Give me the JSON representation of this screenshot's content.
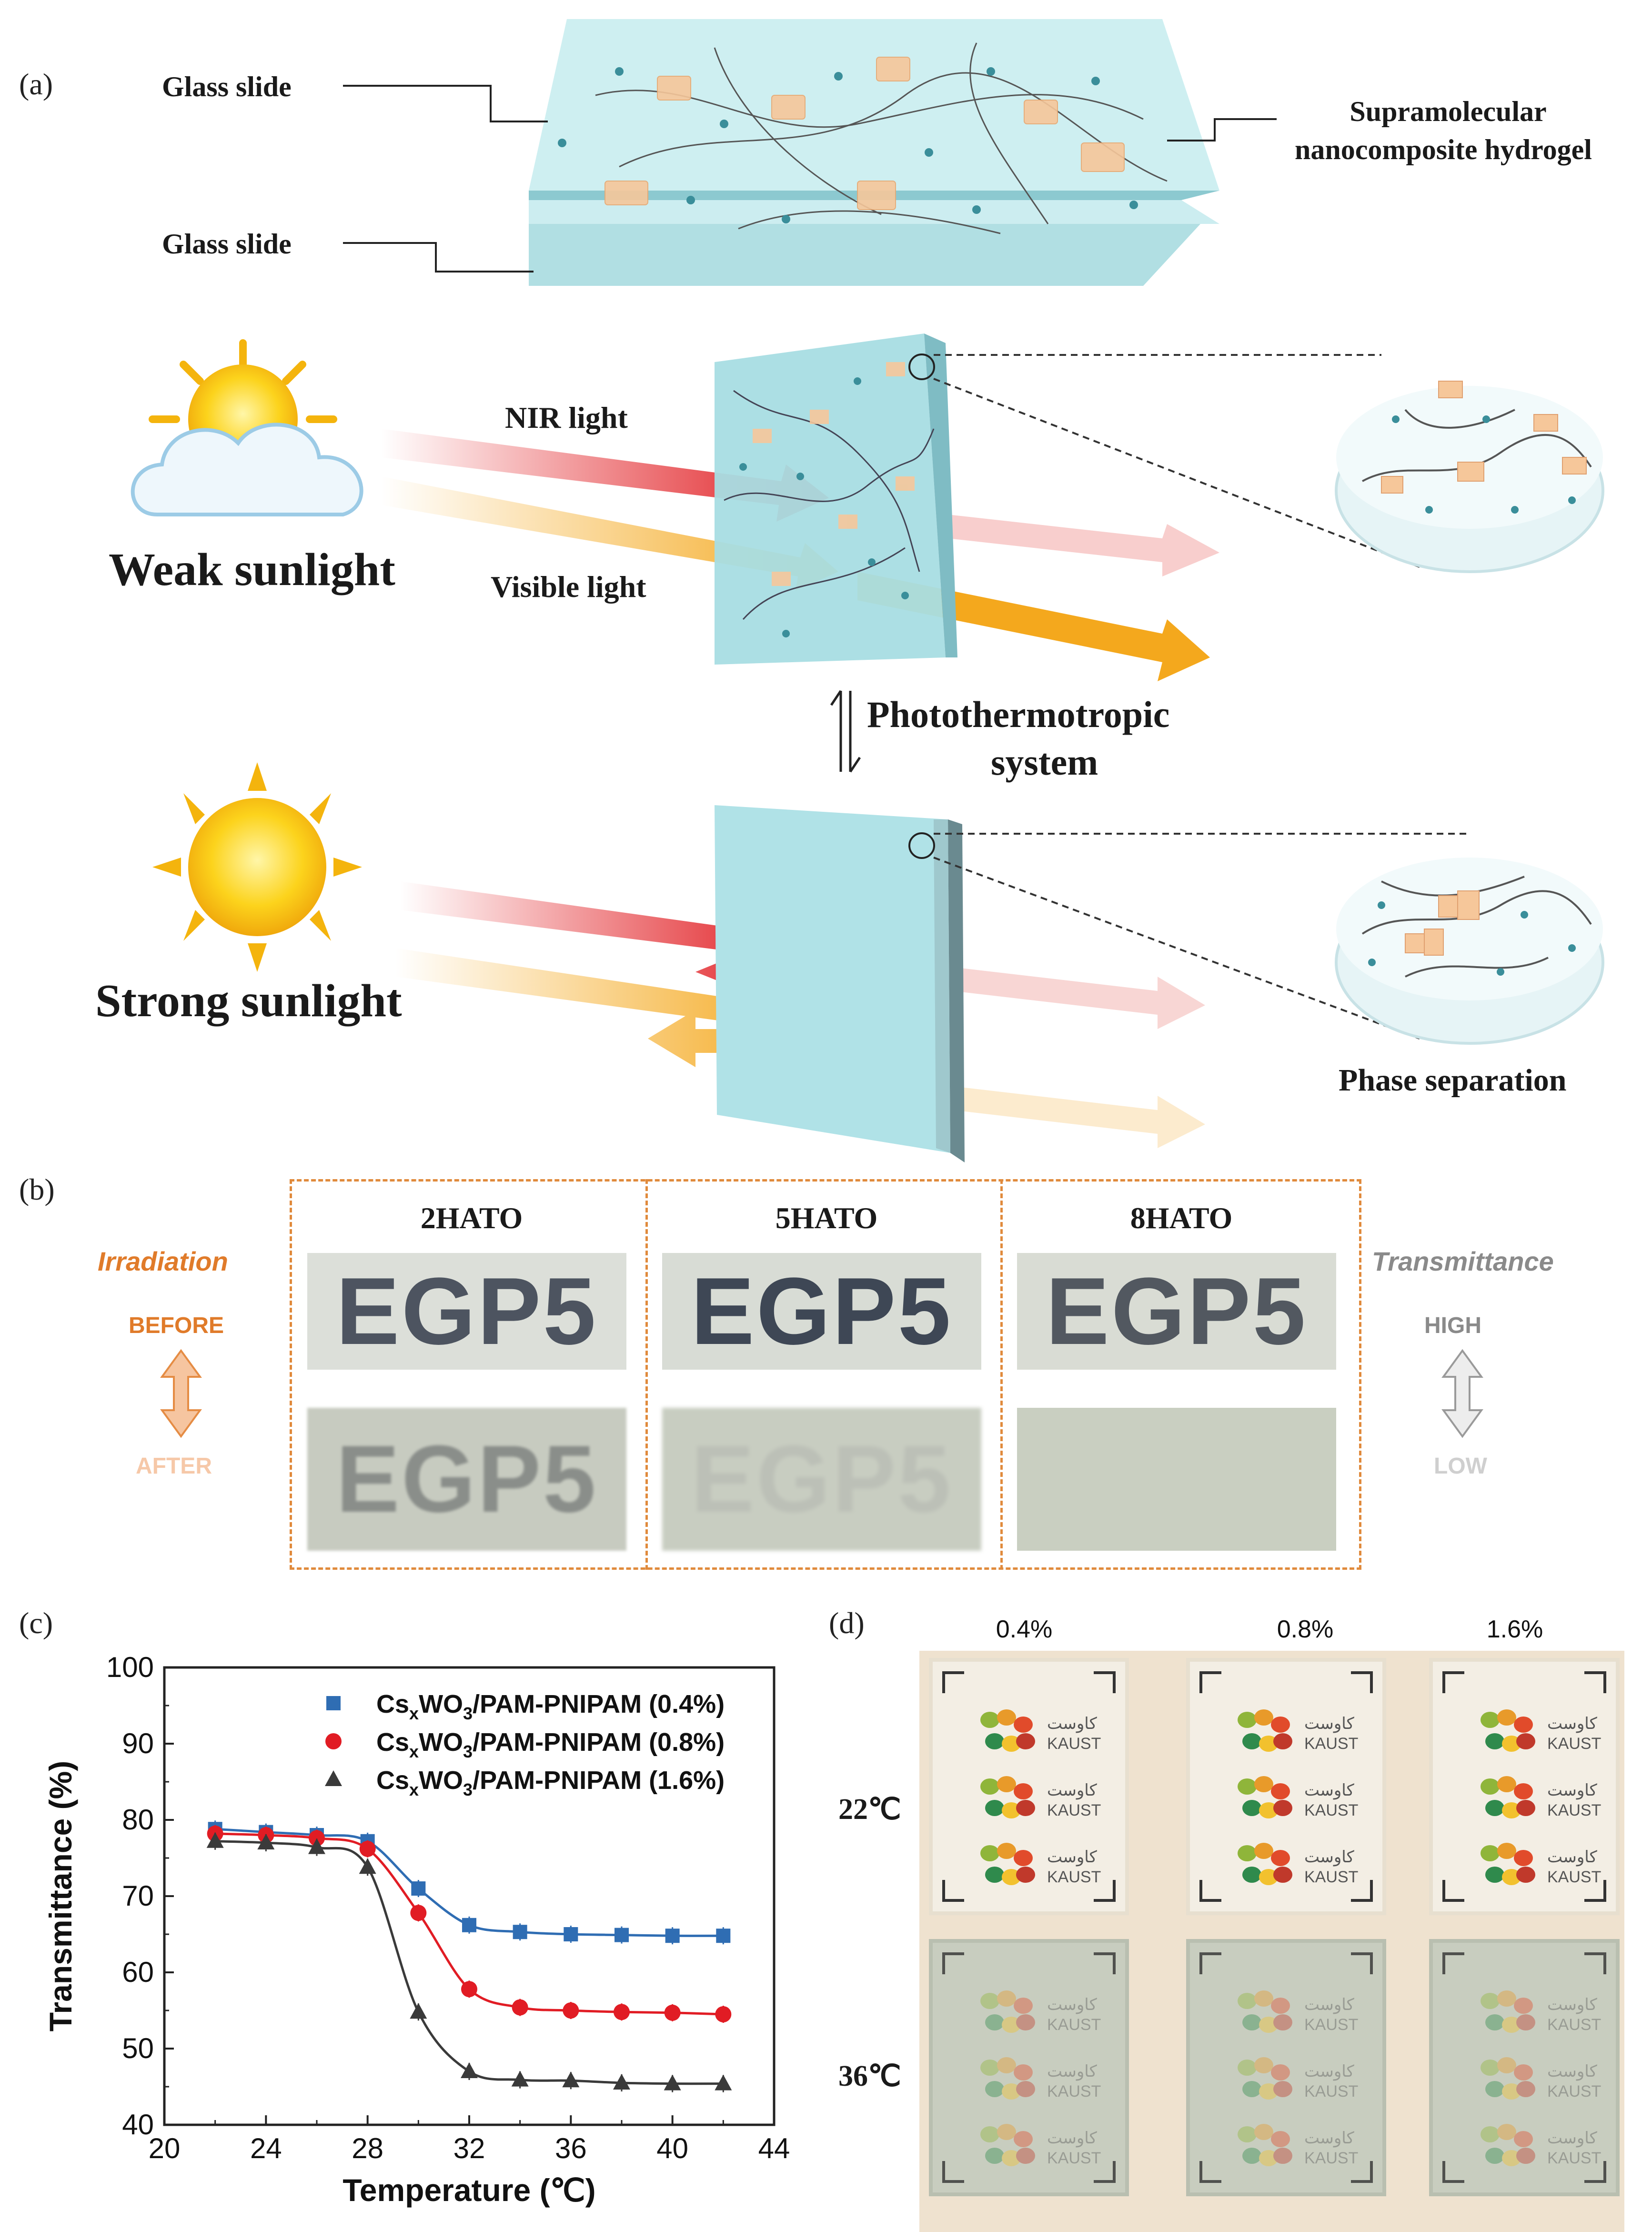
{
  "panel_a": {
    "letter": "(a)",
    "glass_slide_top": "Glass slide",
    "glass_slide_bottom": "Glass slide",
    "hydrogel_label_line1": "Supramolecular",
    "hydrogel_label_line2": "nanocomposite hydrogel",
    "weak_sunlight": "Weak sunlight",
    "nir_light": "NIR light",
    "visible_light": "Visible light",
    "system_line1": "Photothermotropic",
    "system_line2": "system",
    "strong_sunlight": "Strong sunlight",
    "phase_separation": "Phase separation",
    "colors": {
      "glass": "#bfe6ea",
      "nir": "#e0161b",
      "visible": "#f4a81d",
      "particle": "#f6c79a",
      "dot": "#3a8e9a"
    }
  },
  "panel_b": {
    "letter": "(b)",
    "samples": [
      "2HATO",
      "5HATO",
      "8HATO"
    ],
    "sample_text": "EGP5",
    "irradiation": "Irradiation",
    "before": "BEFORE",
    "after": "AFTER",
    "transmittance": "Transmittance",
    "high": "HIGH",
    "low": "LOW",
    "colors": {
      "dash": "#e08a3c",
      "irradiation": "#e07b2a",
      "transmittance": "#8a8a8a"
    }
  },
  "panel_c": {
    "letter": "(c)",
    "chart_data": {
      "type": "scatter",
      "xlabel": "Temperature (℃)",
      "ylabel": "Transmittance (%)",
      "xlim": [
        20,
        44
      ],
      "ylim": [
        40,
        100
      ],
      "xticks": [
        20,
        24,
        28,
        32,
        36,
        40,
        44
      ],
      "yticks": [
        40,
        50,
        60,
        70,
        80,
        90,
        100
      ],
      "legend_position": "top-right",
      "series": [
        {
          "name": "Cs",
          "name_tail": "WO",
          "name_rest": "/PAM-PNIPAM (0.4%)",
          "color": "#2f6db3",
          "marker": "square",
          "x": [
            22,
            24,
            26,
            28,
            30,
            32,
            34,
            36,
            38,
            40,
            42
          ],
          "y": [
            78.8,
            78.4,
            78.0,
            77.2,
            71.0,
            66.2,
            65.3,
            65.0,
            64.9,
            64.8,
            64.8
          ]
        },
        {
          "name": "Cs",
          "name_tail": "WO",
          "name_rest": "/PAM-PNIPAM (0.8%)",
          "color": "#e11c24",
          "marker": "circle",
          "x": [
            22,
            24,
            26,
            28,
            30,
            32,
            34,
            36,
            38,
            40,
            42
          ],
          "y": [
            78.2,
            78.0,
            77.6,
            76.2,
            67.8,
            57.8,
            55.4,
            55.0,
            54.8,
            54.7,
            54.5
          ]
        },
        {
          "name": "Cs",
          "name_tail": "WO",
          "name_rest": "/PAM-PNIPAM (1.6%)",
          "color": "#3a3a3a",
          "marker": "triangle",
          "x": [
            22,
            24,
            26,
            28,
            30,
            32,
            34,
            36,
            38,
            40,
            42
          ],
          "y": [
            77.2,
            77.0,
            76.4,
            73.8,
            54.8,
            47.0,
            45.9,
            45.8,
            45.5,
            45.4,
            45.4
          ]
        }
      ]
    }
  },
  "panel_d": {
    "letter": "(d)",
    "concentrations": [
      "0.4%",
      "0.8%",
      "1.6%"
    ],
    "temps": [
      "22℃",
      "36℃"
    ],
    "logo_arabic": "كاوست",
    "logo_latin": "KAUST"
  }
}
